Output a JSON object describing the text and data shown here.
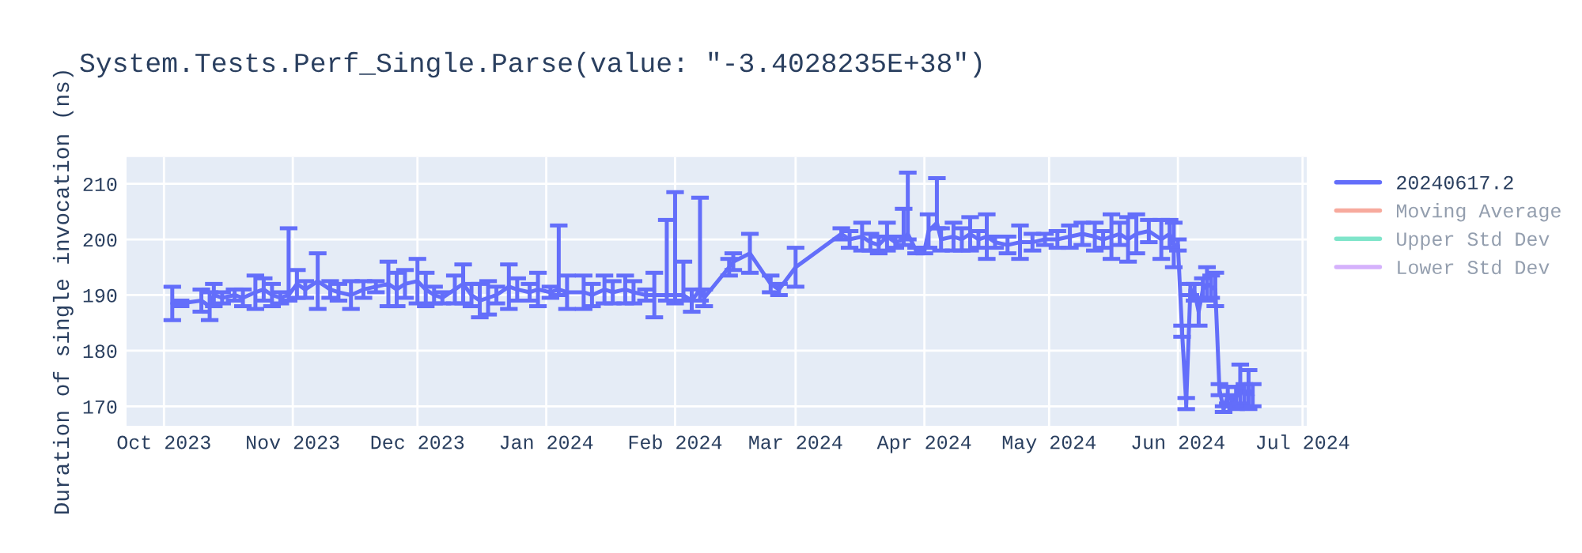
{
  "chart_data": {
    "type": "line",
    "title": "System.Tests.Perf_Single.Parse(value: \"-3.4028235E+38\")",
    "ylabel": "Duration of single invocation (ns)",
    "x": [
      "2023-10-03",
      "2023-10-05",
      "2023-10-10",
      "2023-10-12",
      "2023-10-13",
      "2023-10-15",
      "2023-10-18",
      "2023-10-20",
      "2023-10-23",
      "2023-10-25",
      "2023-10-27",
      "2023-10-29",
      "2023-10-31",
      "2023-11-02",
      "2023-11-04",
      "2023-11-07",
      "2023-11-10",
      "2023-11-12",
      "2023-11-15",
      "2023-11-18",
      "2023-11-21",
      "2023-11-24",
      "2023-11-26",
      "2023-11-28",
      "2023-12-01",
      "2023-12-03",
      "2023-12-05",
      "2023-12-07",
      "2023-12-10",
      "2023-12-12",
      "2023-12-14",
      "2023-12-16",
      "2023-12-18",
      "2023-12-20",
      "2023-12-23",
      "2023-12-25",
      "2023-12-28",
      "2023-12-30",
      "2024-01-02",
      "2024-01-04",
      "2024-01-06",
      "2024-01-10",
      "2024-01-12",
      "2024-01-15",
      "2024-01-17",
      "2024-01-20",
      "2024-01-22",
      "2024-01-25",
      "2024-01-27",
      "2024-01-30",
      "2024-02-01",
      "2024-02-03",
      "2024-02-05",
      "2024-02-07",
      "2024-02-08",
      "2024-02-14",
      "2024-02-15",
      "2024-02-19",
      "2024-02-24",
      "2024-02-26",
      "2024-03-01",
      "2024-03-12",
      "2024-03-14",
      "2024-03-17",
      "2024-03-19",
      "2024-03-21",
      "2024-03-23",
      "2024-03-25",
      "2024-03-27",
      "2024-03-28",
      "2024-03-30",
      "2024-04-01",
      "2024-04-02",
      "2024-04-04",
      "2024-04-05",
      "2024-04-08",
      "2024-04-10",
      "2024-04-12",
      "2024-04-14",
      "2024-04-16",
      "2024-04-18",
      "2024-04-21",
      "2024-04-24",
      "2024-04-27",
      "2024-04-30",
      "2024-05-03",
      "2024-05-06",
      "2024-05-09",
      "2024-05-12",
      "2024-05-14",
      "2024-05-16",
      "2024-05-18",
      "2024-05-20",
      "2024-05-22",
      "2024-05-25",
      "2024-05-28",
      "2024-05-30",
      "2024-05-31",
      "2024-06-01",
      "2024-06-02",
      "2024-06-03",
      "2024-06-04",
      "2024-06-05",
      "2024-06-06",
      "2024-06-07",
      "2024-06-08",
      "2024-06-09",
      "2024-06-10",
      "2024-06-11",
      "2024-06-12",
      "2024-06-13",
      "2024-06-14",
      "2024-06-15",
      "2024-06-16",
      "2024-06-17",
      "2024-06-18",
      "2024-06-19"
    ],
    "series": [
      {
        "name": "20240617.2",
        "color": "#636efa",
        "values": [
          188.5,
          188.5,
          189,
          188,
          190,
          189.5,
          190,
          189.5,
          190.5,
          191,
          190,
          189.5,
          190,
          192,
          191,
          192.5,
          191,
          190.5,
          190,
          191,
          191.5,
          192,
          191,
          192,
          192.5,
          191,
          190,
          189.5,
          191,
          192,
          190,
          189,
          189.5,
          190,
          191.5,
          191,
          190.5,
          191,
          190.5,
          191,
          190.5,
          190.5,
          190,
          191,
          190.5,
          191,
          190.5,
          190,
          190,
          190,
          190,
          190,
          189,
          191,
          189.5,
          195,
          196,
          197.5,
          192,
          191,
          195,
          201,
          200,
          200.5,
          199.5,
          199,
          200.5,
          199.5,
          200,
          201,
          198,
          198,
          201.5,
          203,
          200,
          200.5,
          200,
          201,
          200,
          200.5,
          199.5,
          199,
          199.5,
          199.5,
          200,
          200,
          200.5,
          201,
          200.5,
          200,
          200.5,
          201,
          200,
          201,
          201.5,
          200,
          201,
          199,
          199,
          183.5,
          170.5,
          191,
          190.5,
          187,
          191,
          192,
          191.5,
          191,
          173,
          169.5,
          172,
          171,
          171.5,
          174,
          172,
          173,
          172
        ],
        "errors": [
          3,
          0.5,
          2,
          2.5,
          2,
          1,
          1,
          1.5,
          3,
          2,
          2,
          1,
          [
            189,
            202
          ],
          2.5,
          1.5,
          5,
          1.5,
          1.5,
          2.5,
          1.5,
          1,
          4,
          3,
          2.5,
          4,
          3,
          1.5,
          1,
          2.5,
          3.5,
          2,
          3,
          3,
          1.5,
          4,
          2,
          1.5,
          3,
          1,
          [
            190,
            202.5
          ],
          3,
          3,
          2,
          2.5,
          2,
          2.5,
          2,
          1,
          4,
          [
            189,
            203.5
          ],
          [
            188.5,
            208.5
          ],
          [
            189,
            196
          ],
          2,
          [
            189,
            207.5
          ],
          1.5,
          1.5,
          1.5,
          3.5,
          1.5,
          1,
          3.5,
          1,
          1.5,
          2.5,
          1.5,
          1.5,
          2.5,
          1,
          [
            199,
            205.5
          ],
          [
            200,
            212
          ],
          0.5,
          0.5,
          3,
          [
            202,
            211
          ],
          2,
          2.5,
          2,
          3,
          1.5,
          4,
          1,
          1.5,
          3,
          1.5,
          1,
          1.5,
          2,
          2,
          2.5,
          1.5,
          4,
          2,
          4,
          3.5,
          2,
          3.5,
          2.5,
          4,
          1,
          1,
          1,
          1,
          1.5,
          2.5,
          2,
          3,
          2,
          3,
          1,
          0.5,
          1.5,
          1,
          2,
          3.5,
          2,
          3.5,
          2
        ]
      },
      {
        "name": "Moving Average",
        "color": "#ef553b",
        "values": [
          null,
          null,
          null,
          null,
          null,
          null,
          null,
          null,
          null,
          null,
          null,
          null,
          null,
          null,
          null,
          null,
          null,
          null,
          null,
          null,
          null,
          null,
          null,
          null,
          null,
          null,
          null,
          null,
          null,
          null,
          null,
          null,
          null,
          null,
          null,
          null,
          null,
          null,
          null,
          null,
          null,
          null,
          null,
          null,
          null,
          null,
          null,
          null,
          null,
          null,
          null,
          null,
          null,
          null,
          null,
          null,
          null,
          null,
          null,
          null,
          null,
          null,
          null,
          null,
          null,
          null,
          null,
          null,
          null,
          null,
          null,
          null,
          null,
          null,
          null,
          null,
          null,
          null,
          null,
          null,
          null,
          null,
          null,
          null,
          null,
          null,
          null,
          null,
          null,
          null,
          null,
          null,
          null,
          null,
          null,
          null,
          null,
          null,
          null,
          null,
          null,
          null,
          null,
          null,
          null,
          null,
          null,
          null,
          null,
          null,
          null,
          null,
          null,
          null,
          null,
          null,
          null
        ]
      },
      {
        "name": "Upper Std Dev",
        "color": "#00cc96",
        "values": [
          null,
          null,
          null,
          null,
          null,
          null,
          null,
          null,
          null,
          null,
          null,
          null,
          null,
          null,
          null,
          null,
          null,
          null,
          null,
          null,
          null,
          null,
          null,
          null,
          null,
          null,
          null,
          null,
          null,
          null,
          null,
          null,
          null,
          null,
          null,
          null,
          null,
          null,
          null,
          null,
          null,
          null,
          null,
          null,
          null,
          null,
          null,
          null,
          null,
          null,
          null,
          null,
          null,
          null,
          null,
          null,
          null,
          null,
          null,
          null,
          null,
          null,
          null,
          null,
          null,
          null,
          null,
          null,
          null,
          null,
          null,
          null,
          null,
          null,
          null,
          null,
          null,
          null,
          null,
          null,
          null,
          null,
          null,
          null,
          null,
          null,
          null,
          null,
          null,
          null,
          null,
          null,
          null,
          null,
          null,
          null,
          null,
          null,
          null,
          null,
          null,
          null,
          null,
          null,
          null,
          null,
          null,
          null,
          null,
          null,
          null,
          null,
          null,
          null,
          null,
          null,
          null
        ]
      },
      {
        "name": "Lower Std Dev",
        "color": "#ab63fa",
        "values": [
          null,
          null,
          null,
          null,
          null,
          null,
          null,
          null,
          null,
          null,
          null,
          null,
          null,
          null,
          null,
          null,
          null,
          null,
          null,
          null,
          null,
          null,
          null,
          null,
          null,
          null,
          null,
          null,
          null,
          null,
          null,
          null,
          null,
          null,
          null,
          null,
          null,
          null,
          null,
          null,
          null,
          null,
          null,
          null,
          null,
          null,
          null,
          null,
          null,
          null,
          null,
          null,
          null,
          null,
          null,
          null,
          null,
          null,
          null,
          null,
          null,
          null,
          null,
          null,
          null,
          null,
          null,
          null,
          null,
          null,
          null,
          null,
          null,
          null,
          null,
          null,
          null,
          null,
          null,
          null,
          null,
          null,
          null,
          null,
          null,
          null,
          null,
          null,
          null,
          null,
          null,
          null,
          null,
          null,
          null,
          null,
          null,
          null,
          null,
          null,
          null,
          null,
          null,
          null,
          null,
          null,
          null,
          null,
          null,
          null,
          null,
          null,
          null,
          null,
          null,
          null,
          null
        ]
      }
    ],
    "xlim": [
      "2023-09-22",
      "2024-07-02"
    ],
    "xticks": [
      {
        "value": "2023-10-01",
        "label": "Oct 2023"
      },
      {
        "value": "2023-11-01",
        "label": "Nov 2023"
      },
      {
        "value": "2023-12-01",
        "label": "Dec 2023"
      },
      {
        "value": "2024-01-01",
        "label": "Jan 2024"
      },
      {
        "value": "2024-02-01",
        "label": "Feb 2024"
      },
      {
        "value": "2024-03-01",
        "label": "Mar 2024"
      },
      {
        "value": "2024-04-01",
        "label": "Apr 2024"
      },
      {
        "value": "2024-05-01",
        "label": "May 2024"
      },
      {
        "value": "2024-06-01",
        "label": "Jun 2024"
      },
      {
        "value": "2024-07-01",
        "label": "Jul 2024"
      }
    ],
    "ylim": [
      166.5,
      214.8
    ],
    "yticks": [
      170,
      180,
      190,
      200,
      210
    ],
    "grid": true,
    "legend": "top right",
    "marker": "none",
    "line_style": "solid"
  }
}
